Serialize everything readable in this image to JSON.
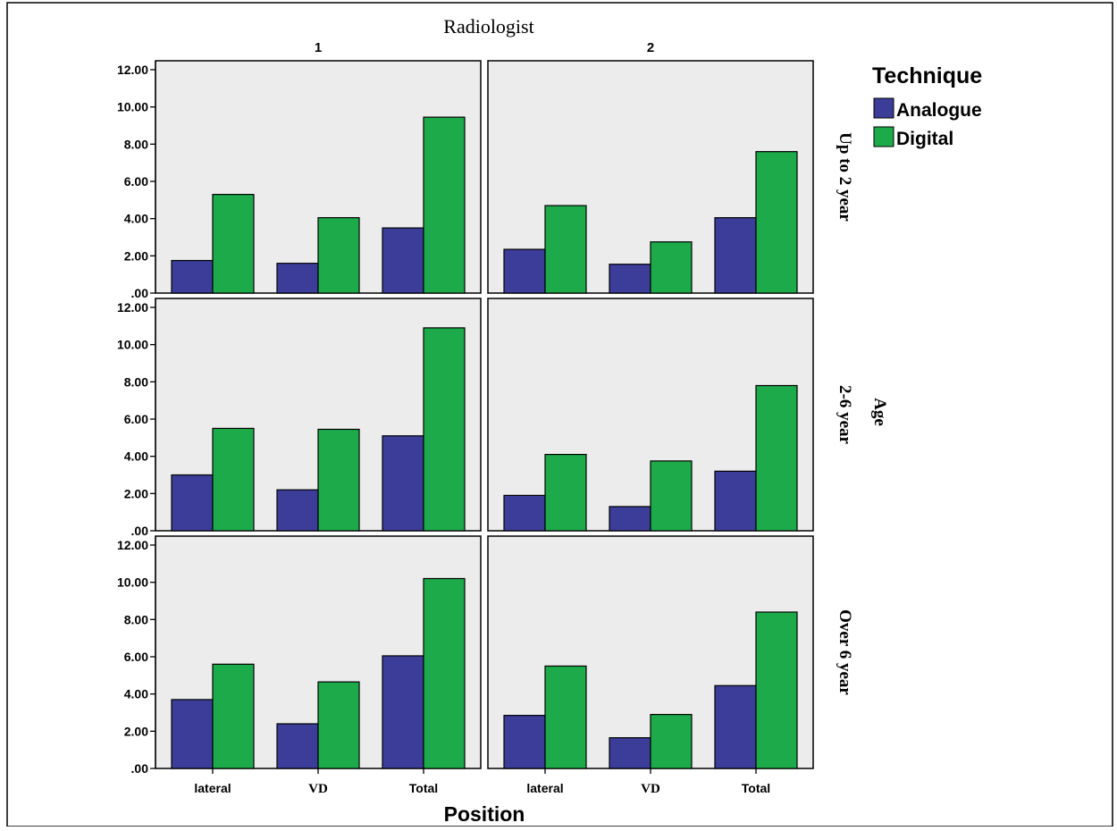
{
  "chart_data": {
    "type": "bar",
    "col_group_title": "Radiologist",
    "row_group_title": "Age",
    "xlabel": "Position",
    "ylabel": "",
    "ylim": [
      0,
      12
    ],
    "yticks": [
      ".00",
      "2.00",
      "4.00",
      "6.00",
      "8.00",
      "10.00",
      "12.00"
    ],
    "categories": [
      "lateral",
      "VD",
      "Total"
    ],
    "columns": [
      "1",
      "2"
    ],
    "rows": [
      "Up to 2 year",
      "2-6 year",
      "Over 6 year"
    ],
    "legend": {
      "title": "Technique",
      "position": "top-right",
      "items": [
        "Analogue",
        "Digital"
      ]
    },
    "colors": {
      "Analogue": "#3b3d98",
      "Digital": "#1daa4a"
    },
    "panels": [
      {
        "row": "Up to 2 year",
        "column": "1",
        "series": [
          {
            "name": "Analogue",
            "values": [
              1.75,
              1.6,
              3.5
            ]
          },
          {
            "name": "Digital",
            "values": [
              5.3,
              4.05,
              9.45
            ]
          }
        ]
      },
      {
        "row": "Up to 2 year",
        "column": "2",
        "series": [
          {
            "name": "Analogue",
            "values": [
              2.35,
              1.55,
              4.05
            ]
          },
          {
            "name": "Digital",
            "values": [
              4.7,
              2.75,
              7.6
            ]
          }
        ]
      },
      {
        "row": "2-6 year",
        "column": "1",
        "series": [
          {
            "name": "Analogue",
            "values": [
              3.0,
              2.2,
              5.1
            ]
          },
          {
            "name": "Digital",
            "values": [
              5.5,
              5.45,
              10.9
            ]
          }
        ]
      },
      {
        "row": "2-6 year",
        "column": "2",
        "series": [
          {
            "name": "Analogue",
            "values": [
              1.9,
              1.3,
              3.2
            ]
          },
          {
            "name": "Digital",
            "values": [
              4.1,
              3.75,
              7.8
            ]
          }
        ]
      },
      {
        "row": "Over 6 year",
        "column": "1",
        "series": [
          {
            "name": "Analogue",
            "values": [
              3.7,
              2.4,
              6.05
            ]
          },
          {
            "name": "Digital",
            "values": [
              5.6,
              4.65,
              10.2
            ]
          }
        ]
      },
      {
        "row": "Over 6 year",
        "column": "2",
        "series": [
          {
            "name": "Analogue",
            "values": [
              2.85,
              1.65,
              4.45
            ]
          },
          {
            "name": "Digital",
            "values": [
              5.5,
              2.9,
              8.4
            ]
          }
        ]
      }
    ]
  }
}
